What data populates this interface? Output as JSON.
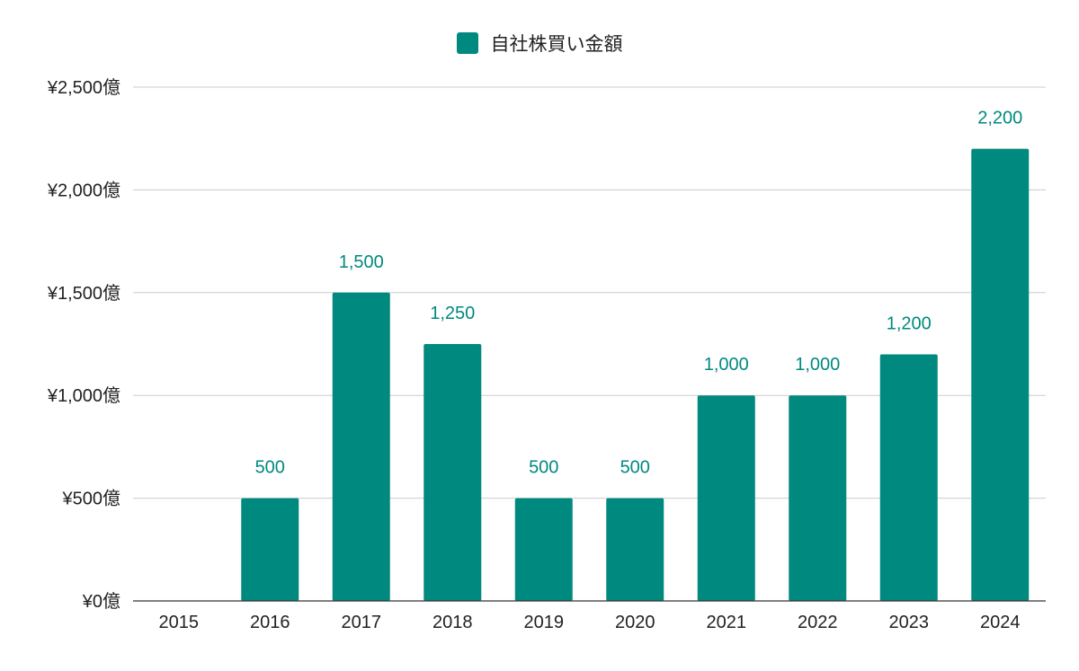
{
  "chart_data": {
    "type": "bar",
    "categories": [
      "2015",
      "2016",
      "2017",
      "2018",
      "2019",
      "2020",
      "2021",
      "2022",
      "2023",
      "2024"
    ],
    "series": [
      {
        "name": "自社株買い金額",
        "values": [
          0,
          500,
          1500,
          1250,
          500,
          500,
          1000,
          1000,
          1200,
          2200
        ],
        "data_labels": [
          "",
          "500",
          "1,500",
          "1,250",
          "500",
          "500",
          "1,000",
          "1,000",
          "1,200",
          "2,200"
        ],
        "color": "#00897f"
      }
    ],
    "y_ticks": [
      0,
      500,
      1000,
      1500,
      2000,
      2500
    ],
    "y_tick_labels": [
      "¥0億",
      "¥500億",
      "¥1,000億",
      "¥1,500億",
      "¥2,000億",
      "¥2,500億"
    ],
    "ylim": [
      0,
      2500
    ],
    "grid": true,
    "legend_position": "top-center",
    "title": "",
    "xlabel": "",
    "ylabel": ""
  }
}
